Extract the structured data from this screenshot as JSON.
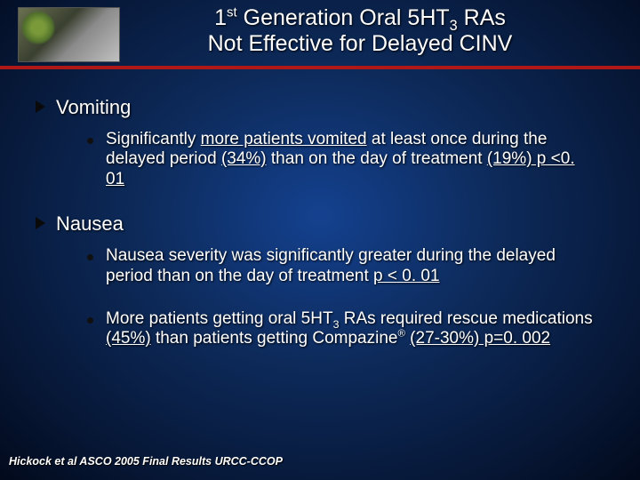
{
  "title": {
    "line1_pre": "1",
    "line1_sup": "st",
    "line1_mid": " Generation Oral 5HT",
    "line1_sub": "3",
    "line1_post": " RAs",
    "line2": "Not Effective for Delayed CINV"
  },
  "bullets": {
    "b1": {
      "label": "Vomiting"
    },
    "b1_1": {
      "t1": "Significantly ",
      "u1": "more patients vomited",
      "t2": " at least once during the delayed period ",
      "u2": "(34%)",
      "t3": " than on the day of treatment ",
      "u3": "(19%) p <0. 01"
    },
    "b2": {
      "label": "Nausea"
    },
    "b2_1": {
      "t1": "Nausea severity was significantly greater during the delayed period than on the day of treatment ",
      "u1": "p < 0. 01"
    },
    "b2_2": {
      "t1": "More patients getting oral 5HT",
      "sub": "3",
      "t2": " RAs required rescue medications ",
      "u1": "(45%)",
      "t3": " than patients getting Compazine",
      "sup": "®",
      "t4": " ",
      "u2": "(27-30%)  p=0. 002"
    }
  },
  "footer": "Hickock et al ASCO 2005 Final Results  URCC-CCOP"
}
